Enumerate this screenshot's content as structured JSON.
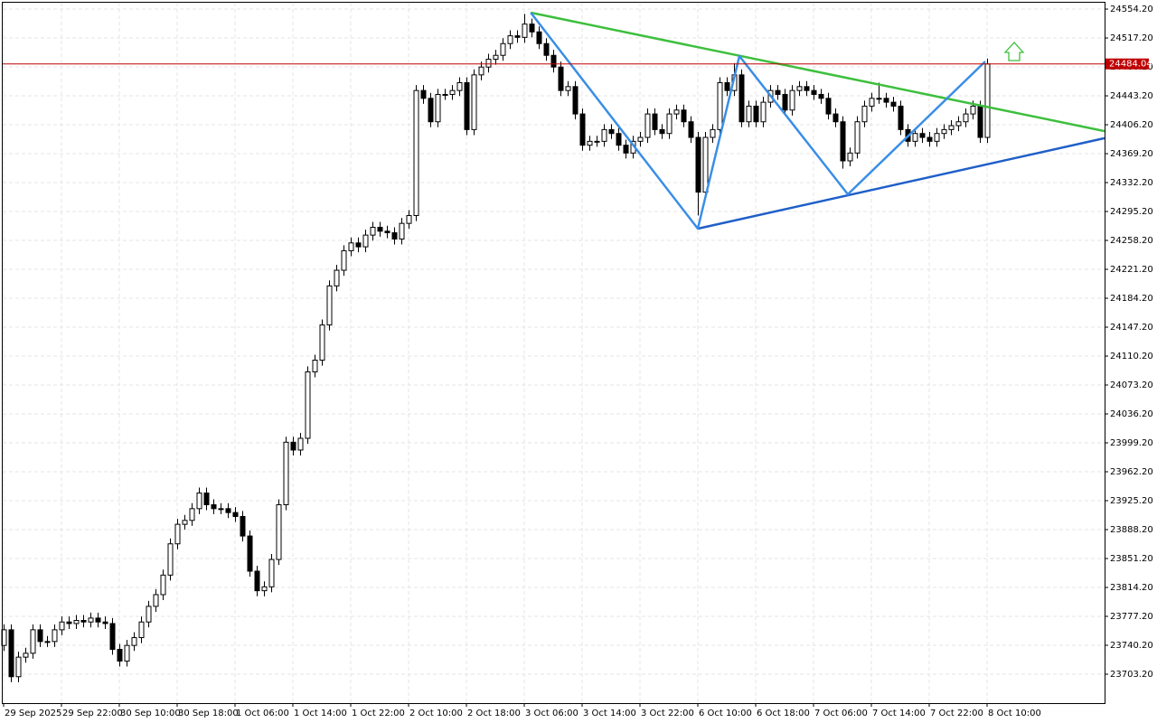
{
  "chart_data": {
    "type": "candlestick",
    "categories": [
      "29 Sep 2025",
      null,
      null,
      null,
      null,
      null,
      null,
      null,
      "29 Sep 22:00",
      null,
      null,
      null,
      null,
      null,
      null,
      null,
      "30 Sep 10:00",
      null,
      null,
      null,
      null,
      null,
      null,
      null,
      "30 Sep 18:00",
      null,
      null,
      null,
      null,
      null,
      null,
      null,
      "1 Oct 06:00",
      null,
      null,
      null,
      null,
      null,
      null,
      null,
      "1 Oct 14:00",
      null,
      null,
      null,
      null,
      null,
      null,
      null,
      "1 Oct 22:00",
      null,
      null,
      null,
      null,
      null,
      null,
      null,
      "2 Oct 10:00",
      null,
      null,
      null,
      null,
      null,
      null,
      null,
      "2 Oct 18:00",
      null,
      null,
      null,
      null,
      null,
      null,
      null,
      "3 Oct 06:00",
      null,
      null,
      null,
      null,
      null,
      null,
      null,
      "3 Oct 14:00",
      null,
      null,
      null,
      null,
      null,
      null,
      null,
      "3 Oct 22:00",
      null,
      null,
      null,
      null,
      null,
      null,
      null,
      "6 Oct 10:00",
      null,
      null,
      null,
      null,
      null,
      null,
      null,
      "6 Oct 18:00",
      null,
      null,
      null,
      null,
      null,
      null,
      null,
      "7 Oct 06:00",
      null,
      null,
      null,
      null,
      null,
      null,
      null,
      "7 Oct 14:00",
      null,
      null,
      null,
      null,
      null,
      null,
      null,
      "7 Oct 22:00",
      null,
      null,
      null,
      null,
      null,
      null,
      null,
      "8 Oct 10:00"
    ],
    "open": [
      23740,
      23760,
      23700,
      23725,
      23730,
      23760,
      23745,
      23745,
      23760,
      23770,
      23768,
      23772,
      23770,
      23775,
      23770,
      23768,
      23735,
      23720,
      23740,
      23750,
      23770,
      23790,
      23805,
      23830,
      23870,
      23895,
      23900,
      23915,
      23935,
      23920,
      23915,
      23915,
      23910,
      23905,
      23880,
      23835,
      23810,
      23815,
      23850,
      23920,
      24000,
      23990,
      24005,
      24090,
      24105,
      24150,
      24200,
      24220,
      24245,
      24255,
      24250,
      24265,
      24275,
      24270,
      24268,
      24260,
      24280,
      24290,
      24450,
      24440,
      24410,
      24445,
      24445,
      24450,
      24460,
      24400,
      24470,
      24480,
      24490,
      24495,
      24510,
      24520,
      24518,
      24535,
      24525,
      24510,
      24495,
      24480,
      24450,
      24455,
      24420,
      24380,
      24385,
      24385,
      24400,
      24395,
      24380,
      24370,
      24385,
      24390,
      24420,
      24400,
      24395,
      24420,
      24425,
      24410,
      24390,
      24320,
      24390,
      24400,
      24460,
      24450,
      24470,
      24410,
      24430,
      24410,
      24435,
      24450,
      24445,
      24425,
      24450,
      24455,
      24450,
      24445,
      24440,
      24420,
      24410,
      24360,
      24370,
      24410,
      24430,
      24440,
      24440,
      24435,
      24430,
      24400,
      24385,
      24395,
      24390,
      24385,
      24395,
      24400,
      24405,
      24410,
      24420,
      24430,
      24390
    ],
    "high": [
      23767,
      23767,
      23732,
      23737,
      23767,
      23767,
      23752,
      23767,
      23777,
      23777,
      23779,
      23779,
      23782,
      23782,
      23777,
      23775,
      23742,
      23747,
      23757,
      23777,
      23797,
      23812,
      23837,
      23877,
      23902,
      23907,
      23922,
      23942,
      23942,
      23927,
      23922,
      23922,
      23917,
      23912,
      23887,
      23842,
      23822,
      23857,
      23927,
      24007,
      24007,
      24012,
      24097,
      24112,
      24157,
      24207,
      24227,
      24252,
      24262,
      24262,
      24272,
      24282,
      24282,
      24277,
      24275,
      24287,
      24297,
      24457,
      24457,
      24447,
      24452,
      24452,
      24457,
      24467,
      24467,
      24477,
      24487,
      24497,
      24502,
      24517,
      24527,
      24527,
      24548,
      24542,
      24532,
      24517,
      24502,
      24487,
      24462,
      24462,
      24427,
      24392,
      24392,
      24407,
      24407,
      24402,
      24387,
      24392,
      24397,
      24427,
      24427,
      24407,
      24427,
      24432,
      24432,
      24417,
      24397,
      24397,
      24407,
      24467,
      24467,
      24485,
      24477,
      24437,
      24437,
      24442,
      24457,
      24457,
      24452,
      24457,
      24462,
      24462,
      24457,
      24452,
      24447,
      24427,
      24417,
      24377,
      24417,
      24437,
      24447,
      24460,
      24447,
      24442,
      24437,
      24407,
      24402,
      24402,
      24397,
      24402,
      24407,
      24412,
      24417,
      24427,
      24437,
      24437,
      24491
    ],
    "low": [
      23733,
      23693,
      23693,
      23718,
      23723,
      23738,
      23738,
      23738,
      23753,
      23761,
      23761,
      23763,
      23763,
      23763,
      23761,
      23728,
      23713,
      23713,
      23733,
      23743,
      23763,
      23783,
      23798,
      23823,
      23863,
      23888,
      23893,
      23908,
      23913,
      23908,
      23908,
      23903,
      23898,
      23873,
      23828,
      23803,
      23803,
      23808,
      23843,
      23913,
      23983,
      23983,
      23998,
      24083,
      24098,
      24143,
      24193,
      24213,
      24238,
      24243,
      24243,
      24258,
      24263,
      24261,
      24253,
      24253,
      24273,
      24283,
      24433,
      24403,
      24403,
      24438,
      24438,
      24443,
      24393,
      24393,
      24463,
      24473,
      24483,
      24488,
      24503,
      24511,
      24511,
      24518,
      24503,
      24488,
      24473,
      24443,
      24443,
      24413,
      24373,
      24373,
      24378,
      24378,
      24388,
      24373,
      24363,
      24363,
      24378,
      24383,
      24393,
      24388,
      24388,
      24413,
      24403,
      24383,
      24290,
      24313,
      24383,
      24393,
      24443,
      24443,
      24403,
      24403,
      24403,
      24403,
      24428,
      24438,
      24418,
      24418,
      24443,
      24443,
      24438,
      24433,
      24413,
      24403,
      24350,
      24353,
      24363,
      24403,
      24423,
      24433,
      24428,
      24423,
      24393,
      24378,
      24378,
      24383,
      24378,
      24378,
      24388,
      24393,
      24398,
      24403,
      24413,
      24383,
      24383
    ],
    "close": [
      23760,
      23700,
      23725,
      23730,
      23760,
      23745,
      23745,
      23760,
      23770,
      23768,
      23772,
      23770,
      23775,
      23770,
      23768,
      23735,
      23720,
      23740,
      23750,
      23770,
      23790,
      23805,
      23830,
      23870,
      23895,
      23900,
      23915,
      23935,
      23920,
      23915,
      23915,
      23910,
      23905,
      23880,
      23835,
      23810,
      23815,
      23850,
      23920,
      24000,
      23990,
      24005,
      24090,
      24105,
      24150,
      24200,
      24220,
      24245,
      24255,
      24250,
      24265,
      24275,
      24270,
      24268,
      24260,
      24280,
      24290,
      24450,
      24440,
      24410,
      24445,
      24445,
      24450,
      24460,
      24400,
      24470,
      24480,
      24490,
      24495,
      24510,
      24520,
      24518,
      24535,
      24525,
      24510,
      24495,
      24480,
      24450,
      24455,
      24420,
      24380,
      24385,
      24385,
      24400,
      24395,
      24380,
      24370,
      24385,
      24390,
      24420,
      24400,
      24395,
      24420,
      24425,
      24410,
      24390,
      24320,
      24390,
      24400,
      24460,
      24450,
      24470,
      24410,
      24430,
      24410,
      24435,
      24450,
      24445,
      24425,
      24450,
      24455,
      24450,
      24445,
      24440,
      24420,
      24410,
      24360,
      24370,
      24410,
      24430,
      24440,
      24440,
      24435,
      24430,
      24400,
      24385,
      24395,
      24390,
      24385,
      24395,
      24400,
      24405,
      24410,
      24420,
      24430,
      24390,
      24484
    ],
    "xlim": [
      -0.5,
      152.25
    ],
    "ylim": [
      23666.2,
      24565.8
    ],
    "yticks": [
      {
        "value": 24554.2,
        "label": "24554.20"
      },
      {
        "value": 24517.2,
        "label": "24517.20"
      },
      {
        "value": 24480.2,
        "label": "24480.20"
      },
      {
        "value": 24443.2,
        "label": "24443.20"
      },
      {
        "value": 24406.2,
        "label": "24406.20"
      },
      {
        "value": 24369.2,
        "label": "24369.20"
      },
      {
        "value": 24332.2,
        "label": "24332.20"
      },
      {
        "value": 24295.2,
        "label": "24295.20"
      },
      {
        "value": 24258.2,
        "label": "24258.20"
      },
      {
        "value": 24221.2,
        "label": "24221.20"
      },
      {
        "value": 24184.2,
        "label": "24184.20"
      },
      {
        "value": 24147.2,
        "label": "24147.20"
      },
      {
        "value": 24110.2,
        "label": "24110.20"
      },
      {
        "value": 24073.2,
        "label": "24073.20"
      },
      {
        "value": 24036.2,
        "label": "24036.20"
      },
      {
        "value": 23999.2,
        "label": "23999.20"
      },
      {
        "value": 23962.2,
        "label": "23962.20"
      },
      {
        "value": 23925.2,
        "label": "23925.20"
      },
      {
        "value": 23888.2,
        "label": "23888.20"
      },
      {
        "value": 23851.2,
        "label": "23851.20"
      },
      {
        "value": 23814.2,
        "label": "23814.20"
      },
      {
        "value": 23777.2,
        "label": "23777.20"
      },
      {
        "value": 23740.2,
        "label": "23740.20"
      },
      {
        "value": 23703.2,
        "label": "23703.20"
      }
    ],
    "grid": true,
    "last_price": 24484.04,
    "last_price_color": "#c00000",
    "lines": [
      {
        "color": "#3dbf3d",
        "x": [
          72.9,
          152.25
        ],
        "y": [
          24549.6,
          24398
        ]
      },
      {
        "color": "#1f5fc8",
        "x": [
          96,
          152.25
        ],
        "y": [
          24273.3,
          24389
        ]
      },
      {
        "color": "#3a8ee6",
        "x": [
          72.9,
          96,
          101.75,
          116.75,
          135.75
        ],
        "y": [
          24549.6,
          24273.3,
          24494.1,
          24317.2,
          24487.2
        ]
      }
    ]
  }
}
